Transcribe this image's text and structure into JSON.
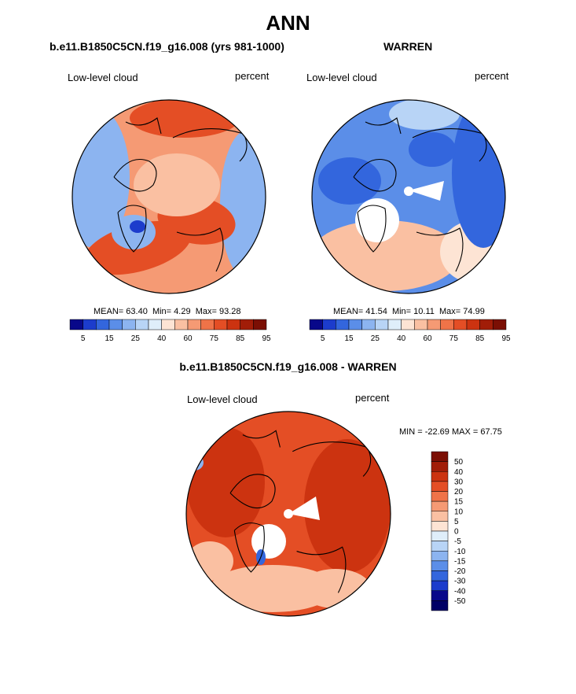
{
  "title": "ANN",
  "panels": [
    {
      "title": "b.e11.B1850C5CN.f19_g16.008 (yrs 981-1000)",
      "left_label": "Low-level cloud",
      "right_label": "percent",
      "stats": {
        "mean_label": "MEAN=",
        "mean": "63.40",
        "min_label": "Min=",
        "min": "4.29",
        "max_label": "Max=",
        "max": "93.28"
      },
      "map_type": "polar-contour",
      "colorbar": {
        "orientation": "horizontal",
        "levels": [
          "5",
          "15",
          "25",
          "40",
          "60",
          "75",
          "85",
          "95"
        ],
        "colors": [
          "#08088a",
          "#1c3ccc",
          "#3366dd",
          "#5b8ee8",
          "#8cb4f0",
          "#b8d4f6",
          "#dfeefa",
          "#fde4d4",
          "#fac0a2",
          "#f59a74",
          "#ef7348",
          "#e44e25",
          "#cc3310",
          "#a11d08",
          "#7b0f04"
        ]
      },
      "palette": {
        "dominant": "#f59a74",
        "warm": "#e44e25",
        "cool": "#8cb4f0",
        "blue_spot": "#1c3ccc"
      }
    },
    {
      "title": "WARREN",
      "left_label": "Low-level cloud",
      "right_label": "percent",
      "stats": {
        "mean_label": "MEAN=",
        "mean": "41.54",
        "min_label": "Min=",
        "min": "10.11",
        "max_label": "Max=",
        "max": "74.99"
      },
      "map_type": "polar-contour",
      "colorbar": {
        "orientation": "horizontal",
        "levels": [
          "5",
          "15",
          "25",
          "40",
          "60",
          "75",
          "85",
          "95"
        ],
        "colors": [
          "#08088a",
          "#1c3ccc",
          "#3366dd",
          "#5b8ee8",
          "#8cb4f0",
          "#b8d4f6",
          "#dfeefa",
          "#fde4d4",
          "#fac0a2",
          "#f59a74",
          "#ef7348",
          "#e44e25",
          "#cc3310",
          "#a11d08",
          "#7b0f04"
        ]
      },
      "palette": {
        "dominant": "#5b8ee8",
        "warm": "#fac0a2",
        "cool": "#3366dd",
        "missing": "#ffffff"
      }
    },
    {
      "title": "b.e11.B1850C5CN.f19_g16.008 - WARREN",
      "left_label": "Low-level cloud",
      "right_label": "percent",
      "stats": {
        "min_label": "MIN =",
        "min": "-22.69",
        "max_label": "MAX =",
        "max": "67.75"
      },
      "map_type": "polar-contour-difference",
      "colorbar": {
        "orientation": "vertical",
        "levels": [
          "50",
          "40",
          "30",
          "20",
          "15",
          "10",
          "5",
          "0",
          "-5",
          "-10",
          "-15",
          "-20",
          "-30",
          "-40",
          "-50"
        ],
        "colors": [
          "#7b0f04",
          "#a11d08",
          "#cc3310",
          "#e44e25",
          "#ef7348",
          "#f59a74",
          "#fac0a2",
          "#fde4d4",
          "#dfeefa",
          "#b8d4f6",
          "#8cb4f0",
          "#5b8ee8",
          "#3366dd",
          "#1c3ccc",
          "#08088a",
          "#000066"
        ]
      },
      "palette": {
        "dominant": "#e44e25",
        "warm": "#cc3310",
        "light": "#fac0a2",
        "cool": "#8cb4f0"
      }
    }
  ],
  "chart_data": [
    {
      "type": "heatmap",
      "title": "b.e11.B1850C5CN.f19_g16.008 (yrs 981-1000)",
      "variable": "Low-level cloud",
      "units": "percent",
      "mean": 63.4,
      "min": 4.29,
      "max": 93.28,
      "colorbar_levels": [
        5,
        15,
        25,
        40,
        60,
        75,
        85,
        95
      ]
    },
    {
      "type": "heatmap",
      "title": "WARREN",
      "variable": "Low-level cloud",
      "units": "percent",
      "mean": 41.54,
      "min": 10.11,
      "max": 74.99,
      "colorbar_levels": [
        5,
        15,
        25,
        40,
        60,
        75,
        85,
        95
      ]
    },
    {
      "type": "heatmap",
      "title": "b.e11.B1850C5CN.f19_g16.008 - WARREN",
      "variable": "Low-level cloud",
      "units": "percent",
      "min": -22.69,
      "max": 67.75,
      "colorbar_levels": [
        50,
        40,
        30,
        20,
        15,
        10,
        5,
        0,
        -5,
        -10,
        -15,
        -20,
        -30,
        -40,
        -50
      ]
    }
  ]
}
